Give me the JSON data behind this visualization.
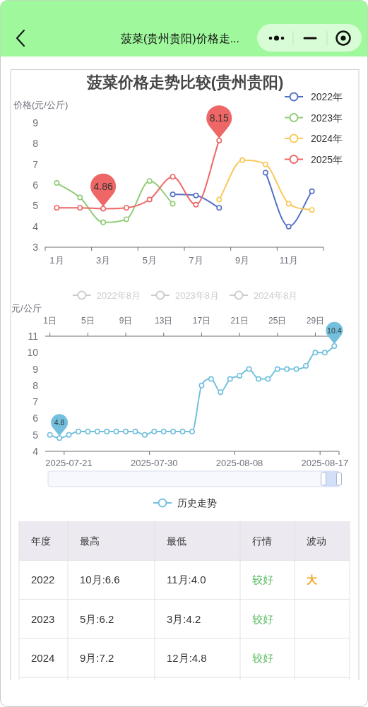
{
  "chart_data": [
    {
      "type": "other",
      "title": "菠菜(贵州贵阳)价格走..."
    },
    {
      "type": "line",
      "title": "菠菜价格走势比较(贵州贵阳)",
      "ylabel": "价格(元/公斤)",
      "categories": [
        "1月",
        null,
        "3月",
        null,
        "5月",
        null,
        "7月",
        null,
        "9月",
        null,
        "11月",
        null
      ],
      "ylim": [
        3,
        9
      ],
      "yticks": [
        3,
        4,
        5,
        6,
        7,
        8,
        9
      ],
      "grid": false,
      "legend": "top right",
      "marker": "circle",
      "series": [
        {
          "name": "2022年",
          "color": "#5470c6",
          "values": [
            null,
            null,
            null,
            null,
            null,
            5.55,
            5.5,
            4.9,
            null,
            6.6,
            4.0,
            5.7
          ]
        },
        {
          "name": "2023年",
          "color": "#91cc75",
          "values": [
            6.1,
            5.4,
            4.2,
            4.35,
            6.2,
            5.1,
            null,
            null,
            null,
            null,
            null,
            null
          ]
        },
        {
          "name": "2024年",
          "color": "#fac858",
          "values": [
            null,
            null,
            null,
            null,
            null,
            null,
            null,
            5.3,
            7.2,
            7.0,
            5.1,
            4.8
          ]
        },
        {
          "name": "2025年",
          "color": "#ee6666",
          "values": [
            4.9,
            4.9,
            4.86,
            4.9,
            5.3,
            6.4,
            5.05,
            8.15,
            null,
            null,
            null,
            null
          ],
          "value_labels": [
            null,
            null,
            "4.86",
            null,
            null,
            null,
            null,
            "8.15",
            null,
            null,
            null,
            null
          ]
        }
      ]
    },
    {
      "type": "line",
      "ylabel": "元/公斤",
      "categories": [
        null,
        null,
        "2025-07-21",
        null,
        null,
        null,
        null,
        null,
        null,
        null,
        null,
        "2025-07-30",
        null,
        null,
        null,
        null,
        null,
        null,
        null,
        null,
        "2025-08-08",
        null,
        null,
        null,
        null,
        null,
        null,
        null,
        null,
        "2025-08-17",
        null
      ],
      "ylim": [
        4,
        11
      ],
      "yticks": [
        4,
        5,
        6,
        7,
        8,
        9,
        10,
        11
      ],
      "x2lim": [
        0.5,
        31.5
      ],
      "x2ticks": [
        {
          "value": 1,
          "label": "1日"
        },
        {
          "value": 5,
          "label": "5日"
        },
        {
          "value": 9,
          "label": "9日"
        },
        {
          "value": 13,
          "label": "13日"
        },
        {
          "value": 17,
          "label": "17日"
        },
        {
          "value": 21,
          "label": "21日"
        },
        {
          "value": 25,
          "label": "25日"
        },
        {
          "value": 29,
          "label": "29日"
        }
      ],
      "grid": false,
      "legend": "bottom",
      "marker": "circle",
      "series": [
        {
          "name": "2022年8月",
          "color": "#cccccc",
          "values": [
            null,
            null,
            null,
            null,
            null,
            null,
            null,
            null,
            null,
            null,
            null,
            null,
            null,
            null,
            null,
            null,
            null,
            null,
            null,
            null,
            null,
            null,
            null,
            null,
            null,
            null,
            null,
            null,
            null,
            null,
            null
          ]
        },
        {
          "name": "2023年8月",
          "color": "#cccccc",
          "values": [
            null,
            null,
            null,
            null,
            null,
            null,
            null,
            null,
            null,
            null,
            null,
            null,
            null,
            null,
            null,
            null,
            null,
            null,
            null,
            null,
            null,
            null,
            null,
            null,
            null,
            null,
            null,
            null,
            null,
            null,
            null
          ]
        },
        {
          "name": "2024年8月",
          "color": "#cccccc",
          "values": [
            null,
            null,
            null,
            null,
            null,
            null,
            null,
            null,
            null,
            null,
            null,
            null,
            null,
            null,
            null,
            null,
            null,
            null,
            null,
            null,
            null,
            null,
            null,
            null,
            null,
            null,
            null,
            null,
            null,
            null,
            null
          ]
        },
        {
          "name": "历史走势",
          "color": "#73c0de",
          "values": [
            5.0,
            4.8,
            5.0,
            5.2,
            5.2,
            5.2,
            5.2,
            5.2,
            5.2,
            5.2,
            5.0,
            5.2,
            5.2,
            5.2,
            5.2,
            5.2,
            8.0,
            8.4,
            7.6,
            8.4,
            8.6,
            9.0,
            8.4,
            8.4,
            9.0,
            9.0,
            9.0,
            9.2,
            10.0,
            10.0,
            10.4
          ],
          "value_labels": [
            null,
            "4.8",
            null,
            null,
            null,
            null,
            null,
            null,
            null,
            null,
            null,
            null,
            null,
            null,
            null,
            null,
            null,
            null,
            null,
            null,
            null,
            null,
            null,
            null,
            null,
            null,
            null,
            null,
            null,
            null,
            "10.4"
          ]
        }
      ]
    },
    {
      "type": "other",
      "categories": [
        "年度",
        "最高",
        "最低",
        "行情",
        "波动"
      ],
      "cell_labels": [
        [
          "2022",
          "10月:6.6",
          "11月:4.0",
          "较好",
          "大"
        ],
        [
          "2023",
          "5月:6.2",
          "3月:4.2",
          "较好",
          null
        ],
        [
          "2024",
          "9月:7.2",
          "12月:4.8",
          "较好",
          null
        ],
        [
          null,
          null,
          null,
          null,
          null
        ]
      ]
    }
  ]
}
